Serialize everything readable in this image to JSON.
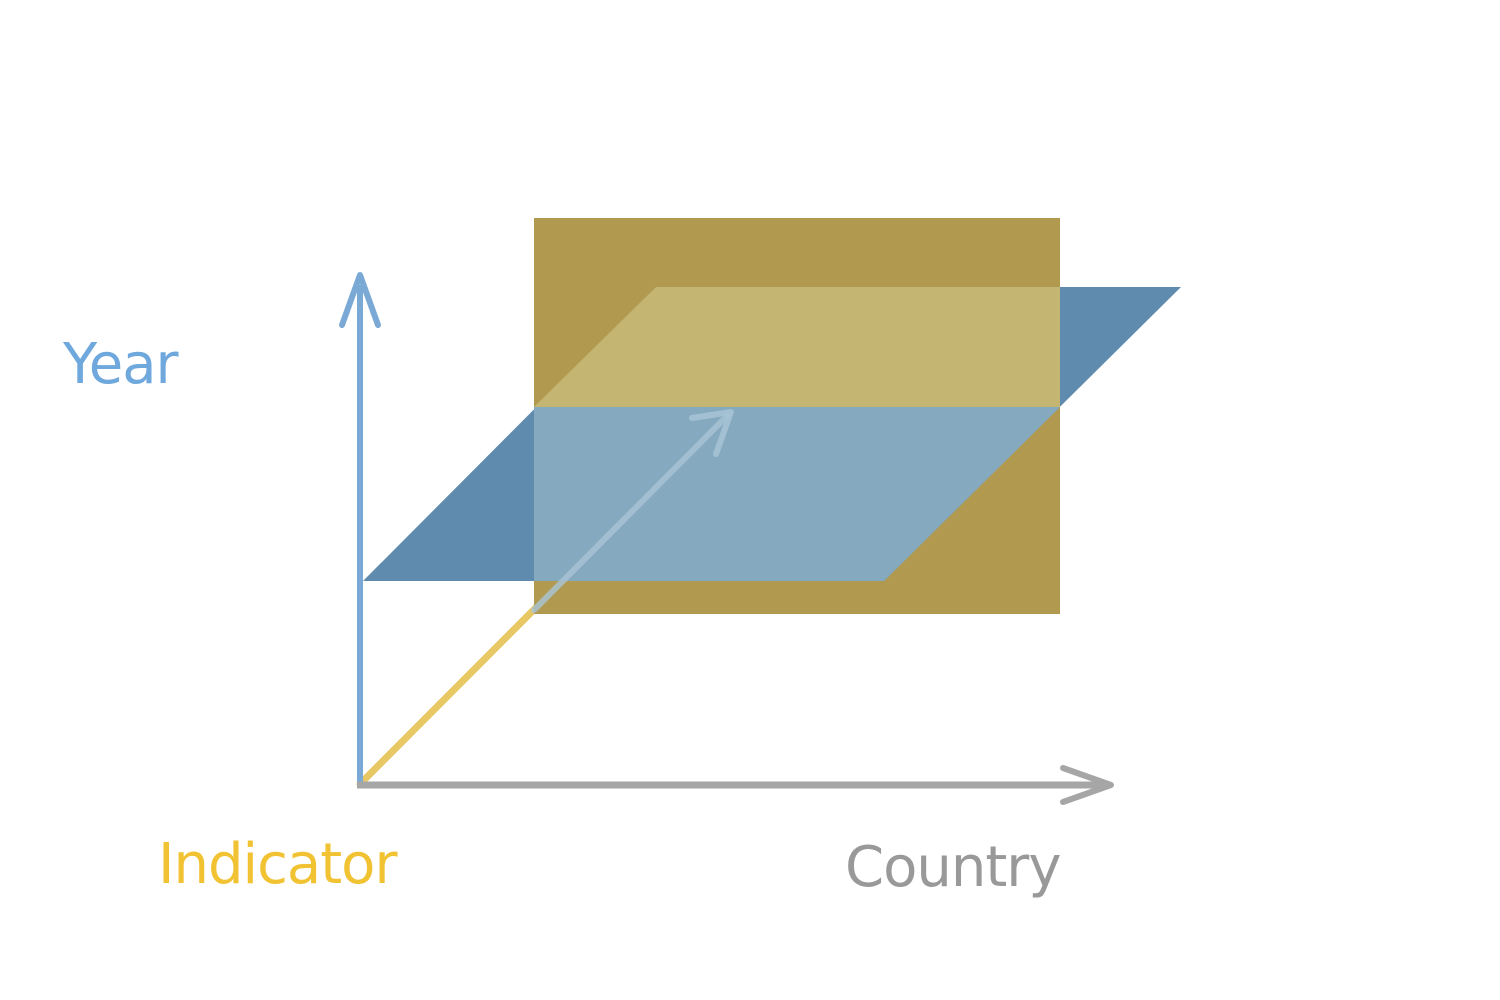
{
  "axes": {
    "year": {
      "label": "Year",
      "color": "#6fa8dc"
    },
    "indicator": {
      "label": "Indicator",
      "color": "#f1c232"
    },
    "country": {
      "label": "Country",
      "color": "#999999"
    }
  },
  "planes": {
    "indicator_slice": {
      "color": "#b19a4f"
    },
    "year_slice": {
      "color": "#5f8bae"
    },
    "overlap_upper": {
      "color": "#c4b572"
    },
    "overlap_lower": {
      "color": "#85aabf"
    }
  }
}
